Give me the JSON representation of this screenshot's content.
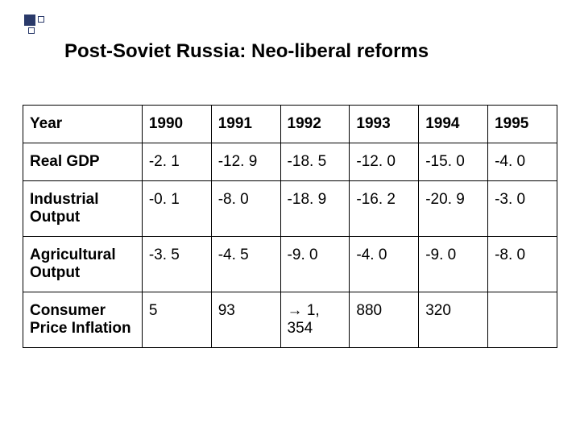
{
  "title": "Post-Soviet Russia: Neo-liberal reforms",
  "table": {
    "header_label": "Year",
    "years": [
      "1990",
      "1991",
      "1992",
      "1993",
      "1994",
      "1995"
    ],
    "rows": [
      {
        "label": "Real GDP",
        "cells": [
          "-2. 1",
          "-12. 9",
          "-18. 5",
          "-12. 0",
          "-15. 0",
          "-4. 0"
        ]
      },
      {
        "label": "Industrial Output",
        "cells": [
          "-0. 1",
          "-8. 0",
          "-18. 9",
          "-16. 2",
          "-20. 9",
          "-3. 0"
        ]
      },
      {
        "label": "Agricultural Output",
        "cells": [
          "-3. 5",
          "-4. 5",
          "-9. 0",
          "-4. 0",
          "-9. 0",
          "-8. 0"
        ]
      },
      {
        "label": "Consumer Price Inflation",
        "cells": [
          "5",
          "93",
          "→ 1, 354",
          "880",
          "320",
          ""
        ]
      }
    ]
  },
  "styling": {
    "title_fontsize": 24,
    "title_color": "#000000",
    "cell_fontsize": 19,
    "border_color": "#000000",
    "background_color": "#ffffff",
    "bullet_color": "#2a3a6a"
  }
}
